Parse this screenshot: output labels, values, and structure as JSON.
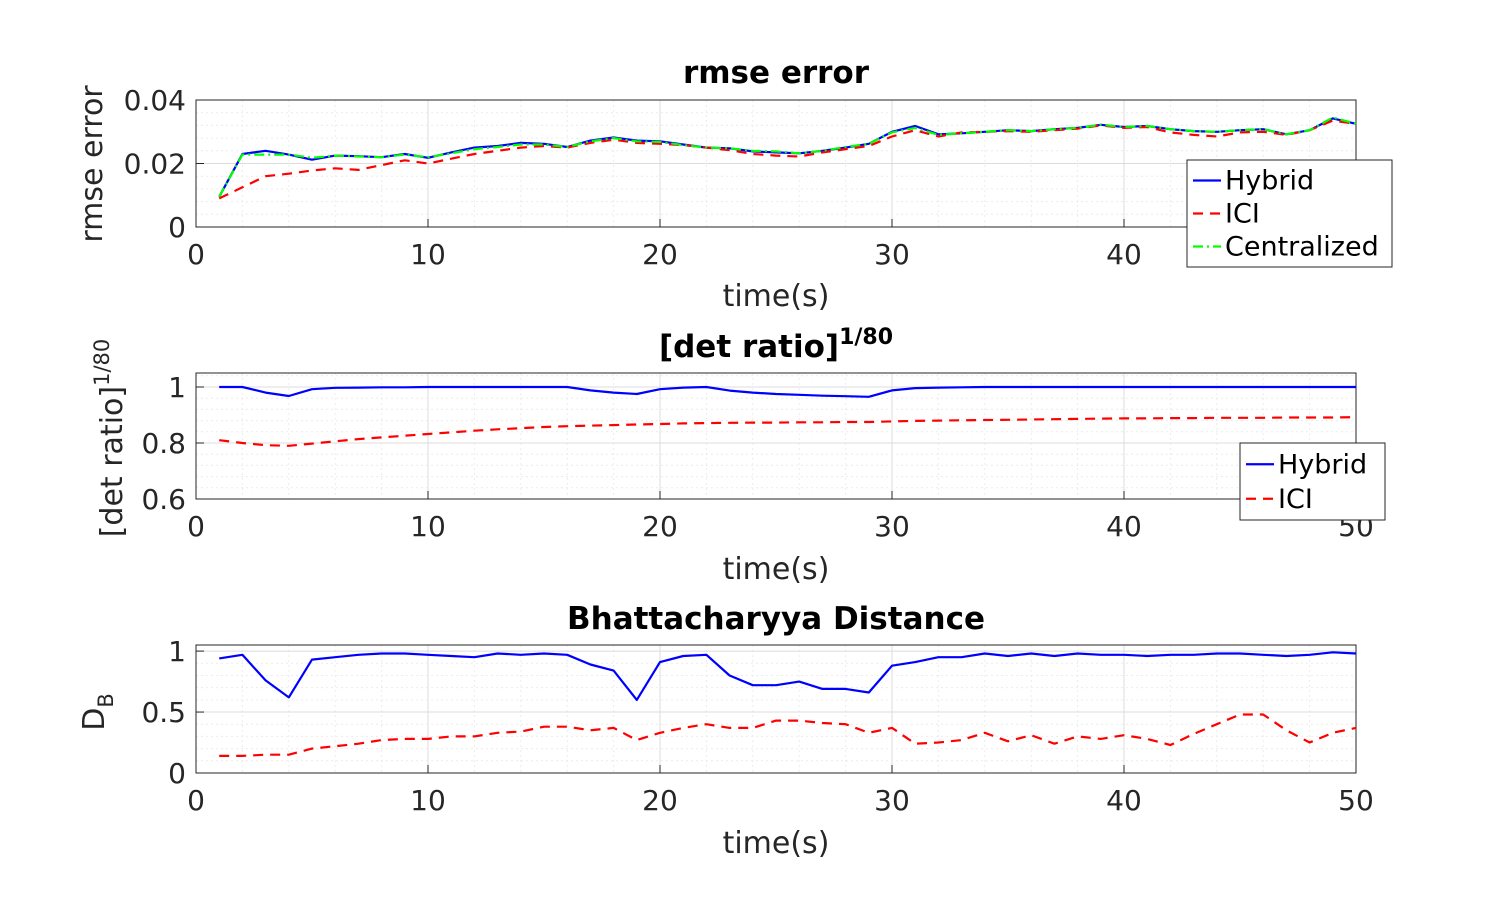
{
  "chart_data": [
    {
      "type": "line",
      "title": "rmse error",
      "xlabel": "time(s)",
      "ylabel": "rmse error",
      "xlim": [
        0,
        50
      ],
      "ylim": [
        0,
        0.04
      ],
      "xticks": [
        0,
        10,
        20,
        30,
        40
      ],
      "yticks": [
        0,
        0.02,
        0.04
      ],
      "ytick_labels": [
        "0",
        "0.02",
        "0.04"
      ],
      "grid": true,
      "legend": "right",
      "x": [
        1,
        2,
        3,
        4,
        5,
        6,
        7,
        8,
        9,
        10,
        11,
        12,
        13,
        14,
        15,
        16,
        17,
        18,
        19,
        20,
        21,
        22,
        23,
        24,
        25,
        26,
        27,
        28,
        29,
        30,
        31,
        32,
        33,
        34,
        35,
        36,
        37,
        38,
        39,
        40,
        41,
        42,
        43,
        44,
        45,
        46,
        47,
        48,
        49,
        50
      ],
      "series": [
        {
          "name": "Hybrid",
          "color": "#0000ff",
          "dash": "solid",
          "values": [
            0.0095,
            0.023,
            0.024,
            0.0228,
            0.0212,
            0.0225,
            0.0223,
            0.022,
            0.023,
            0.0218,
            0.0235,
            0.025,
            0.0255,
            0.0265,
            0.0262,
            0.0252,
            0.0272,
            0.0282,
            0.0272,
            0.027,
            0.026,
            0.025,
            0.0248,
            0.0238,
            0.0235,
            0.0232,
            0.024,
            0.025,
            0.0262,
            0.03,
            0.0318,
            0.0292,
            0.0295,
            0.03,
            0.0305,
            0.0302,
            0.0308,
            0.0312,
            0.0322,
            0.0315,
            0.0318,
            0.0308,
            0.0302,
            0.03,
            0.0305,
            0.0308,
            0.0292,
            0.0305,
            0.0342,
            0.0325
          ]
        },
        {
          "name": "ICI",
          "color": "#ff0000",
          "dash": "dashed",
          "values": [
            0.009,
            0.0125,
            0.016,
            0.0168,
            0.0178,
            0.0185,
            0.018,
            0.0195,
            0.021,
            0.02,
            0.0215,
            0.023,
            0.024,
            0.025,
            0.0255,
            0.025,
            0.0265,
            0.0275,
            0.0265,
            0.0262,
            0.0258,
            0.025,
            0.0242,
            0.023,
            0.0225,
            0.0222,
            0.0235,
            0.0245,
            0.0255,
            0.0285,
            0.0305,
            0.0285,
            0.0298,
            0.03,
            0.0302,
            0.03,
            0.0305,
            0.031,
            0.032,
            0.0312,
            0.0315,
            0.0298,
            0.029,
            0.0285,
            0.0298,
            0.03,
            0.029,
            0.0305,
            0.0335,
            0.0325
          ]
        },
        {
          "name": "Centralized",
          "color": "#00ff00",
          "dash": "dashdot",
          "values": [
            0.0095,
            0.0228,
            0.0228,
            0.0228,
            0.0218,
            0.0225,
            0.0222,
            0.022,
            0.0228,
            0.022,
            0.0232,
            0.0245,
            0.0252,
            0.026,
            0.026,
            0.0252,
            0.027,
            0.028,
            0.027,
            0.0268,
            0.0258,
            0.025,
            0.0248,
            0.024,
            0.0238,
            0.0232,
            0.024,
            0.0252,
            0.0262,
            0.0298,
            0.0312,
            0.029,
            0.0295,
            0.03,
            0.0305,
            0.0302,
            0.0308,
            0.0312,
            0.0322,
            0.0315,
            0.0318,
            0.0308,
            0.0302,
            0.03,
            0.0305,
            0.0308,
            0.0292,
            0.0305,
            0.0345,
            0.0325
          ]
        }
      ]
    },
    {
      "type": "line",
      "title": "[det ratio]",
      "title_sup": "1/80",
      "xlabel": "time(s)",
      "ylabel": "[det ratio]",
      "ylabel_sup": "1/80",
      "xlim": [
        0,
        50
      ],
      "ylim": [
        0.6,
        1.05
      ],
      "xticks": [
        0,
        10,
        20,
        30,
        40,
        50
      ],
      "yticks": [
        0.6,
        0.8,
        1
      ],
      "ytick_labels": [
        "0.6",
        "0.8",
        "1"
      ],
      "grid": true,
      "legend": "bottom-right",
      "x": [
        1,
        2,
        3,
        4,
        5,
        6,
        7,
        8,
        9,
        10,
        11,
        12,
        13,
        14,
        15,
        16,
        17,
        18,
        19,
        20,
        21,
        22,
        23,
        24,
        25,
        26,
        27,
        28,
        29,
        30,
        31,
        32,
        33,
        34,
        35,
        36,
        37,
        38,
        39,
        40,
        41,
        42,
        43,
        44,
        45,
        46,
        47,
        48,
        49,
        50
      ],
      "series": [
        {
          "name": "Hybrid",
          "color": "#0000ff",
          "dash": "solid",
          "values": [
            1.0,
            1.0,
            0.98,
            0.968,
            0.992,
            0.997,
            0.998,
            0.999,
            0.999,
            1.0,
            1.0,
            1.0,
            1.0,
            1.0,
            1.0,
            1.0,
            0.988,
            0.98,
            0.975,
            0.992,
            0.998,
            1.0,
            0.987,
            0.98,
            0.975,
            0.972,
            0.969,
            0.967,
            0.965,
            0.988,
            0.996,
            0.998,
            0.999,
            1.0,
            1.0,
            1.0,
            1.0,
            1.0,
            1.0,
            1.0,
            1.0,
            1.0,
            1.0,
            1.0,
            1.0,
            1.0,
            1.0,
            1.0,
            1.0,
            1.0
          ]
        },
        {
          "name": "ICI",
          "color": "#ff0000",
          "dash": "dashed",
          "values": [
            0.81,
            0.8,
            0.792,
            0.79,
            0.798,
            0.806,
            0.814,
            0.82,
            0.826,
            0.832,
            0.838,
            0.844,
            0.849,
            0.853,
            0.857,
            0.86,
            0.862,
            0.864,
            0.866,
            0.868,
            0.87,
            0.871,
            0.872,
            0.873,
            0.873,
            0.874,
            0.874,
            0.875,
            0.875,
            0.877,
            0.879,
            0.88,
            0.881,
            0.882,
            0.883,
            0.884,
            0.885,
            0.886,
            0.887,
            0.888,
            0.888,
            0.889,
            0.889,
            0.89,
            0.89,
            0.89,
            0.891,
            0.891,
            0.891,
            0.892
          ]
        }
      ]
    },
    {
      "type": "line",
      "title": "Bhattacharyya Distance",
      "xlabel": "time(s)",
      "ylabel": "D",
      "ylabel_sub": "B",
      "xlim": [
        0,
        50
      ],
      "ylim": [
        0,
        1.05
      ],
      "xticks": [
        0,
        10,
        20,
        30,
        40,
        50
      ],
      "yticks": [
        0,
        0.5,
        1
      ],
      "ytick_labels": [
        "0",
        "0.5",
        "1"
      ],
      "grid": true,
      "x": [
        1,
        2,
        3,
        4,
        5,
        6,
        7,
        8,
        9,
        10,
        11,
        12,
        13,
        14,
        15,
        16,
        17,
        18,
        19,
        20,
        21,
        22,
        23,
        24,
        25,
        26,
        27,
        28,
        29,
        30,
        31,
        32,
        33,
        34,
        35,
        36,
        37,
        38,
        39,
        40,
        41,
        42,
        43,
        44,
        45,
        46,
        47,
        48,
        49,
        50
      ],
      "series": [
        {
          "color": "#0000ff",
          "dash": "solid",
          "values": [
            0.94,
            0.97,
            0.76,
            0.62,
            0.93,
            0.95,
            0.97,
            0.98,
            0.98,
            0.97,
            0.96,
            0.95,
            0.98,
            0.97,
            0.98,
            0.97,
            0.89,
            0.84,
            0.6,
            0.91,
            0.96,
            0.97,
            0.8,
            0.72,
            0.72,
            0.75,
            0.69,
            0.69,
            0.66,
            0.88,
            0.91,
            0.95,
            0.95,
            0.98,
            0.96,
            0.98,
            0.96,
            0.98,
            0.97,
            0.97,
            0.96,
            0.97,
            0.97,
            0.98,
            0.98,
            0.97,
            0.96,
            0.97,
            0.99,
            0.98
          ]
        },
        {
          "color": "#ff0000",
          "dash": "dashed",
          "values": [
            0.14,
            0.14,
            0.15,
            0.15,
            0.2,
            0.22,
            0.24,
            0.27,
            0.28,
            0.28,
            0.3,
            0.3,
            0.33,
            0.34,
            0.38,
            0.38,
            0.35,
            0.37,
            0.27,
            0.33,
            0.37,
            0.4,
            0.37,
            0.37,
            0.43,
            0.43,
            0.41,
            0.4,
            0.33,
            0.37,
            0.24,
            0.25,
            0.27,
            0.33,
            0.26,
            0.31,
            0.24,
            0.3,
            0.28,
            0.31,
            0.28,
            0.23,
            0.32,
            0.4,
            0.48,
            0.48,
            0.35,
            0.25,
            0.33,
            0.37
          ]
        }
      ]
    }
  ]
}
